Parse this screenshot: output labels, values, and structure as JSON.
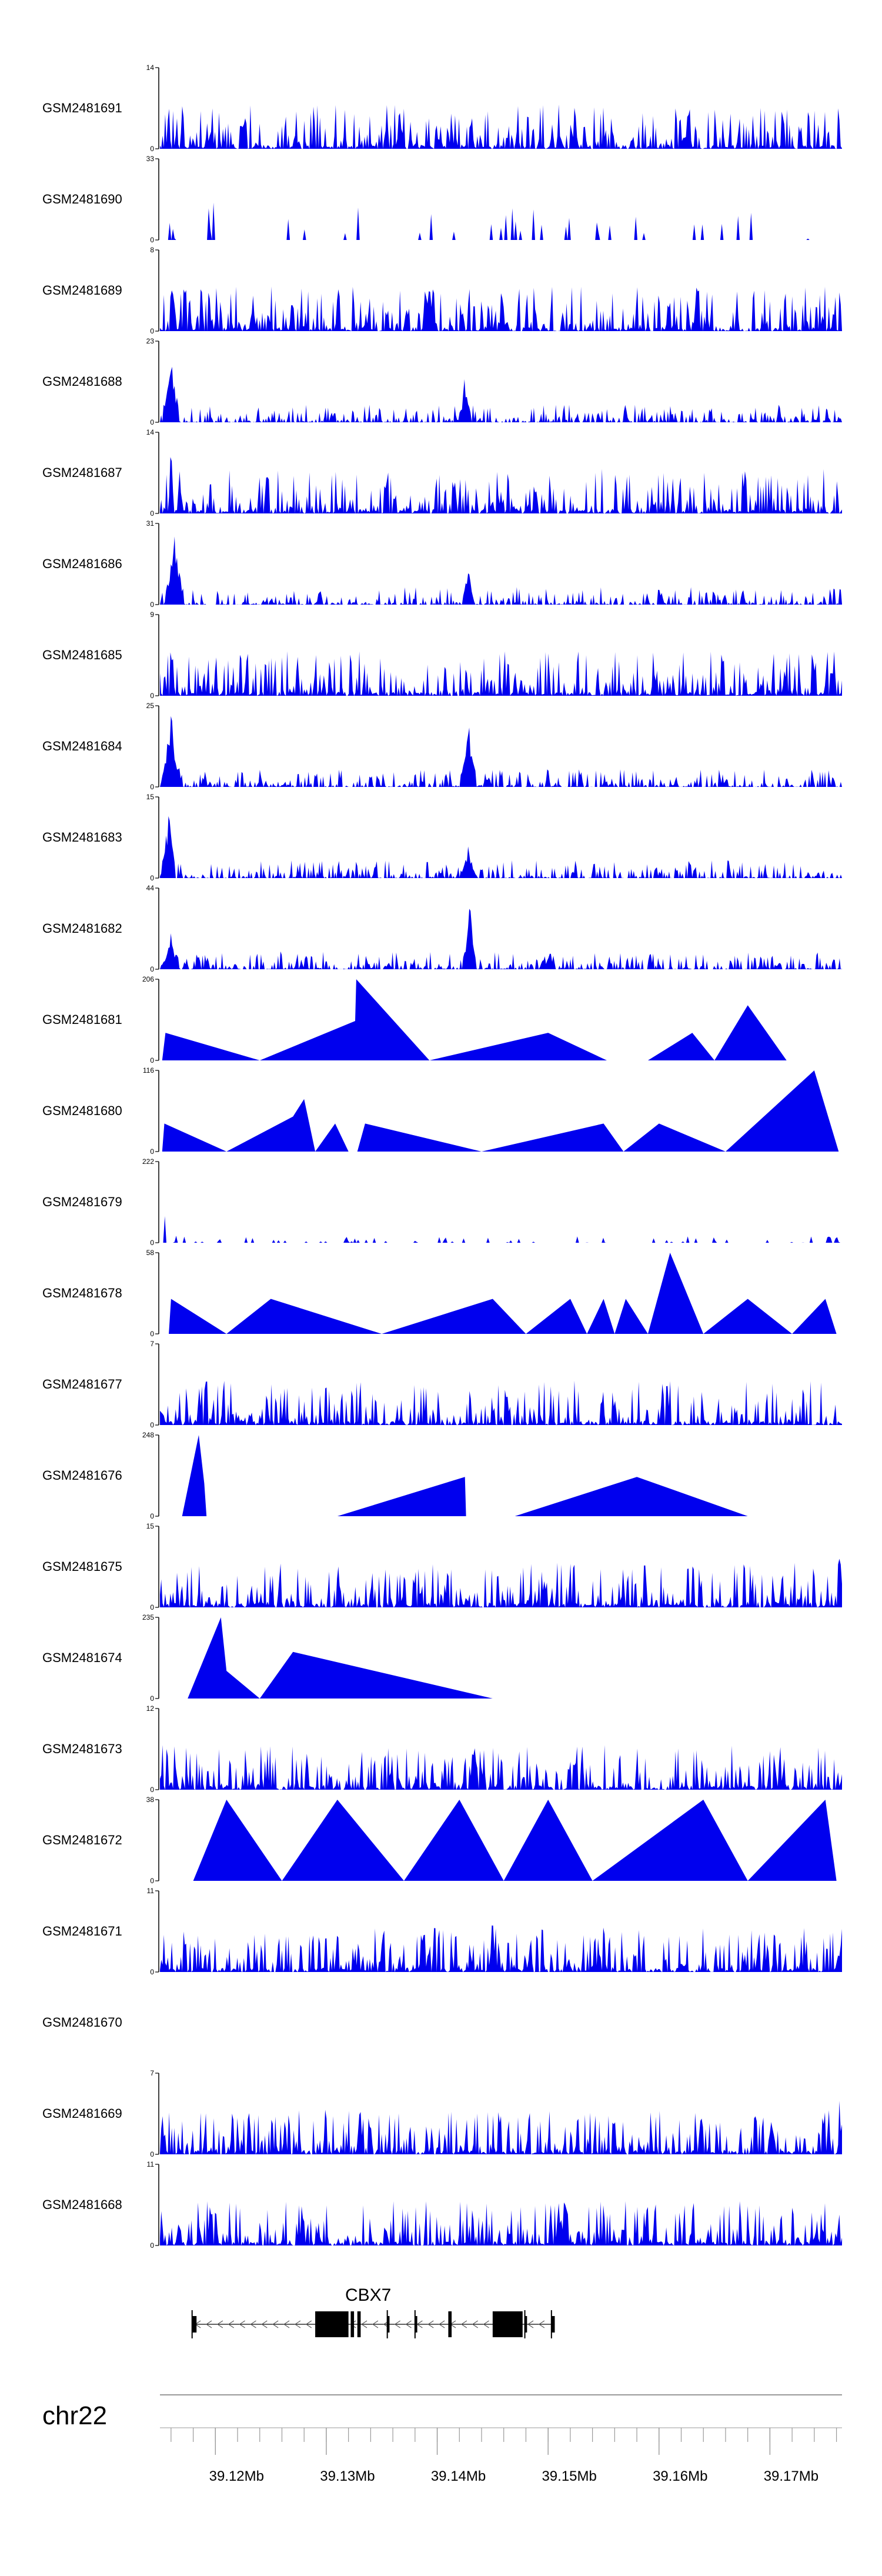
{
  "figure": {
    "chromosome": "chr22",
    "gene_label": "CBX7",
    "fill_color": "#0000ee",
    "axis_color": "#000000",
    "gene_color": "#000000",
    "axis_unit_suffix": "Mb"
  },
  "chart_data": {
    "type": "area",
    "x_range_bp": [
      39115000,
      39176500
    ],
    "x_ticks_major_bp": [
      39120000,
      39130000,
      39140000,
      39150000,
      39160000,
      39170000
    ],
    "x_tick_labels": [
      "39.12Mb",
      "39.13Mb",
      "39.14Mb",
      "39.15Mb",
      "39.16Mb",
      "39.17Mb"
    ],
    "x_ticks_minor_step_bp": 2000,
    "tracks": [
      {
        "name": "GSM2481691",
        "ymax": 14,
        "style": "dense",
        "seed": 11,
        "peaks": [
          [
            39140000,
            5,
            0.1
          ],
          [
            39171500,
            14,
            0.05
          ],
          [
            39176300,
            14,
            0.05
          ],
          [
            39117000,
            9,
            0.12
          ]
        ]
      },
      {
        "name": "GSM2481690",
        "ymax": 33,
        "style": "sparse",
        "seed": 12,
        "peaks": [
          [
            39119000,
            33,
            0.03
          ],
          [
            39119500,
            18,
            0.03
          ],
          [
            39120500,
            10,
            0.03
          ]
        ]
      },
      {
        "name": "GSM2481689",
        "ymax": 8,
        "style": "dense",
        "seed": 13,
        "peaks": [
          [
            39116000,
            8,
            0.1
          ],
          [
            39127000,
            5,
            0.1
          ]
        ]
      },
      {
        "name": "GSM2481688",
        "ymax": 23,
        "style": "chip",
        "seed": 14,
        "peaks": [
          [
            39116000,
            23,
            0.5
          ],
          [
            39142500,
            14,
            0.35
          ]
        ]
      },
      {
        "name": "GSM2481687",
        "ymax": 14,
        "style": "dense",
        "seed": 15,
        "peaks": [
          [
            39116000,
            14,
            0.15
          ],
          [
            39116800,
            9,
            0.15
          ]
        ]
      },
      {
        "name": "GSM2481686",
        "ymax": 31,
        "style": "chip",
        "seed": 16,
        "peaks": [
          [
            39116300,
            31,
            0.55
          ],
          [
            39142800,
            17,
            0.35
          ]
        ]
      },
      {
        "name": "GSM2481685",
        "ymax": 9,
        "style": "dense",
        "seed": 17,
        "peaks": [
          [
            39116000,
            9,
            0.1
          ]
        ]
      },
      {
        "name": "GSM2481684",
        "ymax": 25,
        "style": "chip",
        "seed": 18,
        "peaks": [
          [
            39116000,
            25,
            0.55
          ],
          [
            39142800,
            25,
            0.5
          ],
          [
            39150000,
            8,
            0.15
          ]
        ]
      },
      {
        "name": "GSM2481683",
        "ymax": 15,
        "style": "chip",
        "seed": 19,
        "peaks": [
          [
            39115800,
            15,
            0.4
          ],
          [
            39142800,
            7,
            0.4
          ]
        ]
      },
      {
        "name": "GSM2481682",
        "ymax": 44,
        "style": "chip",
        "seed": 20,
        "peaks": [
          [
            39116000,
            20,
            0.5
          ],
          [
            39142900,
            44,
            0.35
          ],
          [
            39150000,
            10,
            0.15
          ]
        ]
      },
      {
        "name": "GSM2481681",
        "ymax": 206,
        "style": "triangles",
        "seed": 21,
        "apexes": [
          [
            39115500,
            70
          ],
          [
            39132600,
            100
          ],
          [
            39132700,
            206
          ],
          [
            39150000,
            70
          ],
          [
            39163000,
            70
          ],
          [
            39168000,
            140
          ]
        ],
        "zeros": [
          39115200,
          39124000,
          39139300,
          39155300,
          39159000,
          39165000,
          39171500
        ]
      },
      {
        "name": "GSM2481680",
        "ymax": 116,
        "style": "triangles",
        "seed": 22,
        "apexes": [
          [
            39115400,
            40
          ],
          [
            39127000,
            50
          ],
          [
            39128000,
            75
          ],
          [
            39130800,
            40
          ],
          [
            39133500,
            40
          ],
          [
            39155000,
            40
          ],
          [
            39160000,
            40
          ],
          [
            39174000,
            116
          ]
        ],
        "zeros": [
          39115200,
          39121000,
          39129000,
          39132000,
          39132800,
          39144000,
          39156800,
          39166000,
          39176200
        ]
      },
      {
        "name": "GSM2481679",
        "ymax": 222,
        "style": "peaks",
        "seed": 23,
        "peaks": [
          [
            39115400,
            222,
            0.05
          ],
          [
            39116500,
            70,
            0.05
          ]
        ]
      },
      {
        "name": "GSM2481678",
        "ymax": 58,
        "style": "triangles",
        "seed": 24,
        "apexes": [
          [
            39116000,
            25
          ],
          [
            39125000,
            25
          ],
          [
            39145000,
            25
          ],
          [
            39152000,
            25
          ],
          [
            39155000,
            25
          ],
          [
            39157000,
            25
          ],
          [
            39161000,
            58
          ],
          [
            39168000,
            25
          ],
          [
            39175000,
            25
          ]
        ],
        "zeros": [
          39115800,
          39121000,
          39135000,
          39148000,
          39153500,
          39156000,
          39159000,
          39164000,
          39172000,
          39176000
        ]
      },
      {
        "name": "GSM2481677",
        "ymax": 7,
        "style": "dense",
        "seed": 25,
        "peaks": [
          [
            39173000,
            7,
            0.1
          ]
        ]
      },
      {
        "name": "GSM2481676",
        "ymax": 248,
        "style": "triangles",
        "seed": 26,
        "apexes": [
          [
            39118500,
            248
          ],
          [
            39119000,
            100
          ],
          [
            39142500,
            120
          ],
          [
            39158000,
            120
          ]
        ],
        "zeros": [
          39117000,
          39119200,
          39131000,
          39142600,
          39142800,
          39147000,
          39168000
        ]
      },
      {
        "name": "GSM2481675",
        "ymax": 15,
        "style": "dense",
        "seed": 27,
        "peaks": [
          [
            39138000,
            15,
            0.08
          ],
          [
            39176300,
            15,
            0.1
          ]
        ]
      },
      {
        "name": "GSM2481674",
        "ymax": 235,
        "style": "triangles",
        "seed": 28,
        "apexes": [
          [
            39120500,
            235
          ],
          [
            39121000,
            80
          ],
          [
            39127000,
            135
          ]
        ],
        "zeros": [
          39117500,
          39124000,
          39145000
        ]
      },
      {
        "name": "GSM2481673",
        "ymax": 12,
        "style": "dense",
        "seed": 29,
        "peaks": [
          [
            39142500,
            12,
            0.1
          ]
        ]
      },
      {
        "name": "GSM2481672",
        "ymax": 38,
        "style": "triangles",
        "seed": 30,
        "apexes": [
          [
            39121000,
            38
          ],
          [
            39131000,
            38
          ],
          [
            39142000,
            38
          ],
          [
            39150000,
            38
          ],
          [
            39164000,
            38
          ],
          [
            39175000,
            38
          ]
        ],
        "zeros": [
          39118000,
          39126000,
          39137000,
          39146000,
          39154000,
          39168000,
          39176000
        ]
      },
      {
        "name": "GSM2481671",
        "ymax": 11,
        "style": "dense",
        "seed": 31,
        "peaks": [
          [
            39145000,
            11,
            0.15
          ]
        ]
      },
      {
        "name": "GSM2481670",
        "ymax": null,
        "style": "empty",
        "seed": 32
      },
      {
        "name": "GSM2481669",
        "ymax": 7,
        "style": "dense",
        "seed": 33,
        "peaks": [
          [
            39176300,
            7,
            0.1
          ]
        ]
      },
      {
        "name": "GSM2481668",
        "ymax": 11,
        "style": "dense",
        "seed": 34,
        "peaks": [
          [
            39151000,
            11,
            0.1
          ]
        ]
      }
    ],
    "gene_model": {
      "name": "CBX7",
      "strand": "-",
      "intron_range_bp": [
        39117900,
        39150600
      ],
      "exons_bp": [
        [
          39117900,
          39118300,
          "thin"
        ],
        [
          39129000,
          39132000,
          "thick"
        ],
        [
          39132200,
          39132500,
          "thick"
        ],
        [
          39132800,
          39133100,
          "thick"
        ],
        [
          39135500,
          39135700,
          "thin"
        ],
        [
          39138000,
          39138200,
          "thin"
        ],
        [
          39141000,
          39141300,
          "thick"
        ],
        [
          39145000,
          39147700,
          "thick"
        ],
        [
          39147900,
          39148100,
          "thin"
        ],
        [
          39150300,
          39150600,
          "thin"
        ]
      ]
    }
  }
}
